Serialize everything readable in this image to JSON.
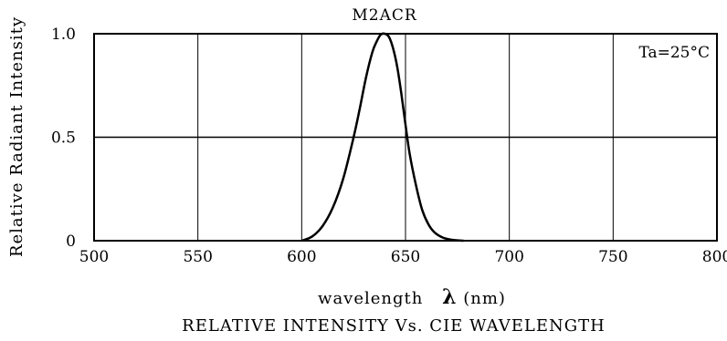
{
  "chart_data": {
    "type": "line",
    "title": "M2ACR",
    "subtitle": "RELATIVE INTENSITY Vs. CIE WAVELENGTH",
    "xlabel": "wavelength",
    "xlabel_symbol": "λ",
    "xlabel_unit": "(nm)",
    "ylabel": "Relative Radiant Intensity",
    "annotation": "Ta=25°C",
    "annotation_position": "top-right",
    "xlim": [
      500,
      800
    ],
    "ylim": [
      0,
      1.0
    ],
    "x_ticks": [
      500,
      550,
      600,
      650,
      700,
      750,
      800
    ],
    "x_tick_labels": [
      "500",
      "550",
      "600",
      "650",
      "700",
      "750",
      "800"
    ],
    "y_ticks": [
      0,
      0.5,
      1.0
    ],
    "y_tick_labels": [
      "0",
      "0.5",
      "1.0"
    ],
    "grid": true,
    "series": [
      {
        "color": "#000000",
        "x": [
          600,
          605,
          610,
          615,
          620,
          625,
          628,
          631,
          634,
          636,
          638,
          640,
          642,
          644,
          646,
          648,
          650,
          652,
          655,
          658,
          661,
          664,
          668,
          672,
          676,
          678
        ],
        "y": [
          0.0,
          0.02,
          0.07,
          0.16,
          0.3,
          0.5,
          0.64,
          0.79,
          0.91,
          0.96,
          0.995,
          1.0,
          0.985,
          0.93,
          0.84,
          0.71,
          0.56,
          0.42,
          0.27,
          0.15,
          0.08,
          0.04,
          0.015,
          0.005,
          0.001,
          0.0
        ]
      }
    ]
  }
}
